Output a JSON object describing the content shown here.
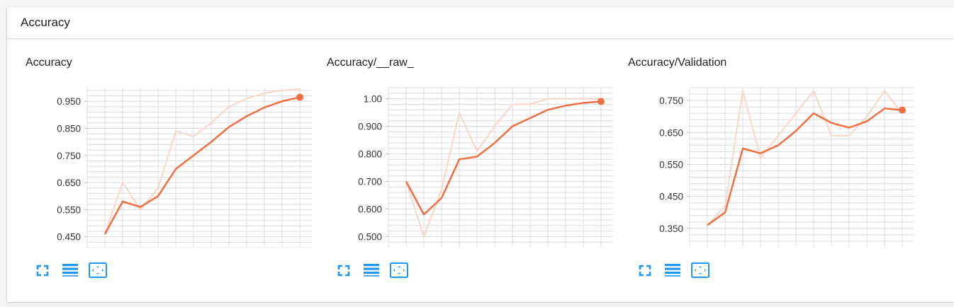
{
  "header": {
    "title": "Accuracy"
  },
  "colors": {
    "smoothed": "#f06f42",
    "raw": "#fbd4c6",
    "grid": "#dcdcdc",
    "tool": "#2196f3"
  },
  "toolbar": {
    "icons": [
      "fullscreen-icon",
      "toggle-log-scale-icon",
      "fit-domain-icon"
    ]
  },
  "chart_data": [
    {
      "type": "line",
      "title": "Accuracy",
      "grid": true,
      "x": [
        0,
        1,
        2,
        3,
        4,
        5,
        6,
        7,
        8,
        9,
        10,
        11
      ],
      "yticks": [
        "0.450",
        "0.550",
        "0.650",
        "0.750",
        "0.850",
        "0.950"
      ],
      "ylim": [
        0.41,
        1.0
      ],
      "series": [
        {
          "values": [
            0.46,
            0.65,
            0.55,
            0.63,
            0.84,
            0.82,
            0.87,
            0.93,
            0.96,
            0.98,
            0.99,
            0.995
          ]
        },
        {
          "values": [
            0.46,
            0.58,
            0.56,
            0.6,
            0.7,
            0.75,
            0.8,
            0.855,
            0.895,
            0.927,
            0.95,
            0.965
          ]
        }
      ]
    },
    {
      "type": "line",
      "title": "Accuracy/__raw_",
      "grid": true,
      "x": [
        0,
        1,
        2,
        3,
        4,
        5,
        6,
        7,
        8,
        9,
        10,
        11
      ],
      "yticks": [
        "0.500",
        "0.600",
        "0.700",
        "0.800",
        "0.900",
        "1.00"
      ],
      "ylim": [
        0.46,
        1.04
      ],
      "series": [
        {
          "values": [
            0.7,
            0.5,
            0.67,
            0.95,
            0.81,
            0.9,
            0.98,
            0.98,
            1.0,
            1.0,
            1.0,
            1.0
          ]
        },
        {
          "values": [
            0.7,
            0.58,
            0.64,
            0.78,
            0.79,
            0.84,
            0.9,
            0.93,
            0.96,
            0.975,
            0.985,
            0.99
          ]
        }
      ]
    },
    {
      "type": "line",
      "title": "Accuracy/Validation",
      "grid": true,
      "x": [
        0,
        1,
        2,
        3,
        4,
        5,
        6,
        7,
        8,
        9,
        10,
        11
      ],
      "yticks": [
        "0.350",
        "0.450",
        "0.550",
        "0.650",
        "0.750"
      ],
      "ylim": [
        0.29,
        0.79
      ],
      "series": [
        {
          "values": [
            0.36,
            0.42,
            0.78,
            0.57,
            0.64,
            0.71,
            0.78,
            0.64,
            0.64,
            0.7,
            0.78,
            0.71
          ]
        },
        {
          "values": [
            0.36,
            0.4,
            0.6,
            0.585,
            0.61,
            0.655,
            0.71,
            0.68,
            0.665,
            0.685,
            0.725,
            0.72
          ]
        }
      ]
    }
  ]
}
